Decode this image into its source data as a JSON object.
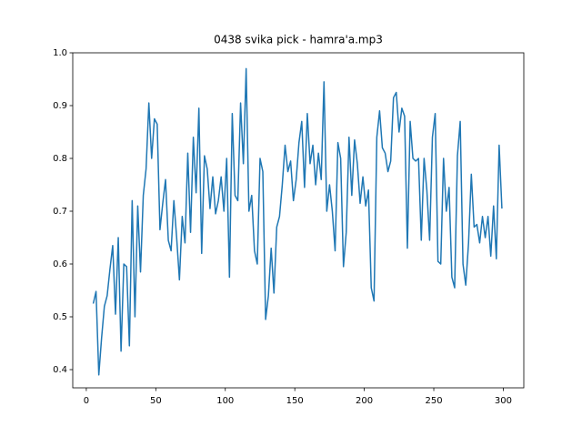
{
  "chart_data": {
    "type": "line",
    "title": "0438 svika pick - hamra'a.mp3",
    "x": [
      5,
      7,
      9,
      11,
      13,
      15,
      17,
      19,
      21,
      23,
      25,
      27,
      29,
      31,
      33,
      35,
      37,
      39,
      41,
      43,
      45,
      47,
      49,
      51,
      53,
      55,
      57,
      59,
      61,
      63,
      65,
      67,
      69,
      71,
      73,
      75,
      77,
      79,
      81,
      83,
      85,
      87,
      89,
      91,
      93,
      95,
      97,
      99,
      101,
      103,
      105,
      107,
      109,
      111,
      113,
      115,
      117,
      119,
      121,
      123,
      125,
      127,
      129,
      131,
      133,
      135,
      137,
      139,
      141,
      143,
      145,
      147,
      149,
      151,
      153,
      155,
      157,
      159,
      161,
      163,
      165,
      167,
      169,
      171,
      173,
      175,
      177,
      179,
      181,
      183,
      185,
      187,
      189,
      191,
      193,
      195,
      197,
      199,
      201,
      203,
      205,
      207,
      209,
      211,
      213,
      215,
      217,
      219,
      221,
      223,
      225,
      227,
      229,
      231,
      233,
      235,
      237,
      239,
      241,
      243,
      245,
      247,
      249,
      251,
      253,
      255,
      257,
      259,
      261,
      263,
      265,
      267,
      269,
      271,
      273,
      275,
      277,
      279,
      281,
      283,
      285,
      287,
      289,
      291,
      293,
      295,
      297,
      299
    ],
    "series": [
      {
        "color": "#1f77b4",
        "values": [
          0.525,
          0.548,
          0.39,
          0.46,
          0.52,
          0.54,
          0.59,
          0.635,
          0.505,
          0.65,
          0.435,
          0.6,
          0.595,
          0.445,
          0.72,
          0.5,
          0.71,
          0.585,
          0.73,
          0.78,
          0.905,
          0.8,
          0.875,
          0.865,
          0.665,
          0.715,
          0.76,
          0.645,
          0.625,
          0.72,
          0.65,
          0.57,
          0.69,
          0.64,
          0.81,
          0.66,
          0.84,
          0.735,
          0.895,
          0.62,
          0.805,
          0.78,
          0.705,
          0.765,
          0.695,
          0.72,
          0.765,
          0.7,
          0.8,
          0.575,
          0.885,
          0.73,
          0.72,
          0.905,
          0.79,
          0.97,
          0.7,
          0.73,
          0.625,
          0.6,
          0.8,
          0.775,
          0.495,
          0.54,
          0.63,
          0.545,
          0.67,
          0.69,
          0.75,
          0.825,
          0.775,
          0.795,
          0.72,
          0.76,
          0.83,
          0.87,
          0.745,
          0.885,
          0.79,
          0.825,
          0.75,
          0.81,
          0.76,
          0.945,
          0.7,
          0.75,
          0.7,
          0.625,
          0.83,
          0.8,
          0.595,
          0.66,
          0.84,
          0.73,
          0.835,
          0.79,
          0.715,
          0.765,
          0.71,
          0.74,
          0.555,
          0.53,
          0.84,
          0.89,
          0.82,
          0.81,
          0.775,
          0.795,
          0.915,
          0.925,
          0.85,
          0.895,
          0.88,
          0.63,
          0.87,
          0.8,
          0.795,
          0.8,
          0.645,
          0.8,
          0.74,
          0.645,
          0.84,
          0.885,
          0.605,
          0.6,
          0.8,
          0.7,
          0.745,
          0.575,
          0.555,
          0.805,
          0.87,
          0.6,
          0.56,
          0.64,
          0.77,
          0.67,
          0.675,
          0.64,
          0.69,
          0.65,
          0.69,
          0.615,
          0.71,
          0.61,
          0.825,
          0.705
        ]
      }
    ],
    "xlim": [
      -9.75,
      314.75
    ],
    "xticks": [
      0,
      50,
      100,
      150,
      200,
      250,
      300
    ],
    "ylim": [
      0.3655,
      1.0
    ],
    "yticks": [
      0.4,
      0.5,
      0.6,
      0.7,
      0.8,
      0.9,
      {
        "value": 1,
        "label": "1.0"
      }
    ]
  }
}
